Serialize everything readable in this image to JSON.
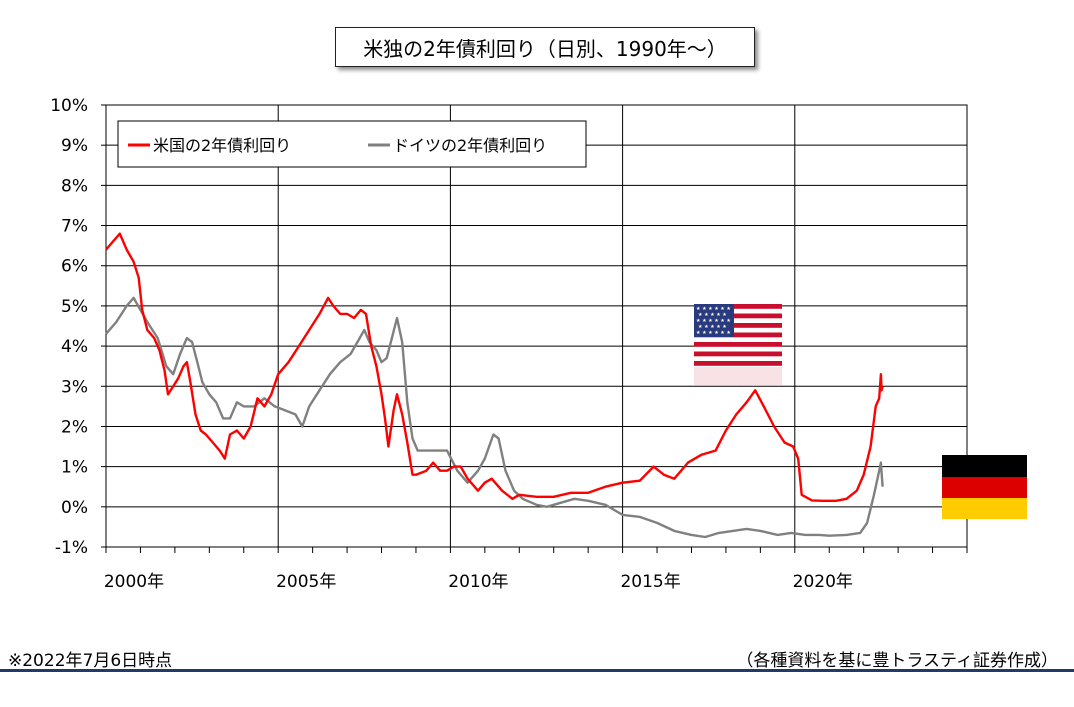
{
  "header": {
    "title": "米独の2年債利回り（日別、1990年～）"
  },
  "footer": {
    "note_left": "※2022年7月6日時点",
    "note_right": "（各種資料を基に豊トラスティ証券作成）"
  },
  "flags": [
    {
      "name": "us-flag-icon"
    },
    {
      "name": "german-flag-icon"
    }
  ],
  "chart_data": {
    "type": "line",
    "title": "米独の2年債利回り（日別、1990年～）",
    "xlabel": "",
    "ylabel": "",
    "xlim": [
      2000,
      2025
    ],
    "ylim": [
      -1,
      10
    ],
    "x_ticks": [
      {
        "value": 2000,
        "label": "2000年"
      },
      {
        "value": 2005,
        "label": "2005年"
      },
      {
        "value": 2010,
        "label": "2010年"
      },
      {
        "value": 2015,
        "label": "2015年"
      },
      {
        "value": 2020,
        "label": "2020年"
      }
    ],
    "y_ticks": [
      {
        "value": 10,
        "label": "10%"
      },
      {
        "value": 9,
        "label": "9%"
      },
      {
        "value": 8,
        "label": "8%"
      },
      {
        "value": 7,
        "label": "7%"
      },
      {
        "value": 6,
        "label": "6%"
      },
      {
        "value": 5,
        "label": "5%"
      },
      {
        "value": 4,
        "label": "4%"
      },
      {
        "value": 3,
        "label": "3%"
      },
      {
        "value": 2,
        "label": "2%"
      },
      {
        "value": 1,
        "label": "1%"
      },
      {
        "value": 0,
        "label": "0%"
      },
      {
        "value": -1,
        "label": "-1%",
        "color": "#ff0000"
      }
    ],
    "grid": true,
    "legend_position": "top-left",
    "series": [
      {
        "name": "米国の2年債利回り",
        "color": "#ff0000",
        "points": [
          [
            2000.0,
            6.4
          ],
          [
            2000.2,
            6.6
          ],
          [
            2000.4,
            6.8
          ],
          [
            2000.6,
            6.4
          ],
          [
            2000.8,
            6.1
          ],
          [
            2000.95,
            5.7
          ],
          [
            2001.05,
            4.9
          ],
          [
            2001.2,
            4.4
          ],
          [
            2001.4,
            4.2
          ],
          [
            2001.55,
            3.9
          ],
          [
            2001.7,
            3.4
          ],
          [
            2001.8,
            2.8
          ],
          [
            2001.95,
            3.0
          ],
          [
            2002.1,
            3.2
          ],
          [
            2002.25,
            3.5
          ],
          [
            2002.35,
            3.6
          ],
          [
            2002.45,
            3.1
          ],
          [
            2002.6,
            2.3
          ],
          [
            2002.75,
            1.9
          ],
          [
            2002.9,
            1.8
          ],
          [
            2003.1,
            1.6
          ],
          [
            2003.3,
            1.4
          ],
          [
            2003.45,
            1.2
          ],
          [
            2003.6,
            1.8
          ],
          [
            2003.8,
            1.9
          ],
          [
            2004.0,
            1.7
          ],
          [
            2004.2,
            2.0
          ],
          [
            2004.4,
            2.7
          ],
          [
            2004.6,
            2.5
          ],
          [
            2004.8,
            2.8
          ],
          [
            2005.0,
            3.3
          ],
          [
            2005.3,
            3.6
          ],
          [
            2005.6,
            4.0
          ],
          [
            2005.9,
            4.4
          ],
          [
            2006.2,
            4.8
          ],
          [
            2006.45,
            5.2
          ],
          [
            2006.6,
            5.0
          ],
          [
            2006.8,
            4.8
          ],
          [
            2007.0,
            4.8
          ],
          [
            2007.2,
            4.7
          ],
          [
            2007.4,
            4.9
          ],
          [
            2007.55,
            4.8
          ],
          [
            2007.7,
            4.0
          ],
          [
            2007.85,
            3.5
          ],
          [
            2008.0,
            2.8
          ],
          [
            2008.1,
            2.2
          ],
          [
            2008.2,
            1.5
          ],
          [
            2008.35,
            2.4
          ],
          [
            2008.45,
            2.8
          ],
          [
            2008.6,
            2.3
          ],
          [
            2008.75,
            1.6
          ],
          [
            2008.9,
            0.8
          ],
          [
            2009.0,
            0.8
          ],
          [
            2009.3,
            0.9
          ],
          [
            2009.5,
            1.1
          ],
          [
            2009.7,
            0.9
          ],
          [
            2009.9,
            0.9
          ],
          [
            2010.1,
            1.0
          ],
          [
            2010.3,
            1.0
          ],
          [
            2010.5,
            0.7
          ],
          [
            2010.8,
            0.4
          ],
          [
            2011.0,
            0.6
          ],
          [
            2011.2,
            0.7
          ],
          [
            2011.5,
            0.4
          ],
          [
            2011.8,
            0.2
          ],
          [
            2012.0,
            0.3
          ],
          [
            2012.5,
            0.25
          ],
          [
            2013.0,
            0.25
          ],
          [
            2013.5,
            0.35
          ],
          [
            2014.0,
            0.35
          ],
          [
            2014.5,
            0.5
          ],
          [
            2015.0,
            0.6
          ],
          [
            2015.5,
            0.65
          ],
          [
            2015.9,
            1.0
          ],
          [
            2016.2,
            0.8
          ],
          [
            2016.5,
            0.7
          ],
          [
            2016.9,
            1.1
          ],
          [
            2017.3,
            1.3
          ],
          [
            2017.7,
            1.4
          ],
          [
            2018.0,
            1.9
          ],
          [
            2018.3,
            2.3
          ],
          [
            2018.6,
            2.6
          ],
          [
            2018.85,
            2.9
          ],
          [
            2019.1,
            2.5
          ],
          [
            2019.4,
            2.0
          ],
          [
            2019.7,
            1.6
          ],
          [
            2019.95,
            1.5
          ],
          [
            2020.1,
            1.2
          ],
          [
            2020.2,
            0.3
          ],
          [
            2020.5,
            0.16
          ],
          [
            2020.8,
            0.15
          ],
          [
            2021.2,
            0.15
          ],
          [
            2021.5,
            0.2
          ],
          [
            2021.8,
            0.4
          ],
          [
            2022.0,
            0.8
          ],
          [
            2022.2,
            1.5
          ],
          [
            2022.35,
            2.5
          ],
          [
            2022.45,
            2.7
          ],
          [
            2022.5,
            3.3
          ],
          [
            2022.52,
            2.9
          ],
          [
            2022.55,
            3.0
          ]
        ]
      },
      {
        "name": "ドイツの2年債利回り",
        "color": "#808080",
        "points": [
          [
            2000.0,
            4.3
          ],
          [
            2000.3,
            4.6
          ],
          [
            2000.6,
            5.0
          ],
          [
            2000.8,
            5.2
          ],
          [
            2001.0,
            4.9
          ],
          [
            2001.2,
            4.6
          ],
          [
            2001.5,
            4.2
          ],
          [
            2001.75,
            3.5
          ],
          [
            2001.95,
            3.3
          ],
          [
            2002.15,
            3.8
          ],
          [
            2002.35,
            4.2
          ],
          [
            2002.5,
            4.1
          ],
          [
            2002.65,
            3.6
          ],
          [
            2002.8,
            3.1
          ],
          [
            2003.0,
            2.8
          ],
          [
            2003.2,
            2.6
          ],
          [
            2003.4,
            2.2
          ],
          [
            2003.6,
            2.2
          ],
          [
            2003.8,
            2.6
          ],
          [
            2004.0,
            2.5
          ],
          [
            2004.3,
            2.5
          ],
          [
            2004.6,
            2.7
          ],
          [
            2004.9,
            2.5
          ],
          [
            2005.2,
            2.4
          ],
          [
            2005.5,
            2.3
          ],
          [
            2005.7,
            2.0
          ],
          [
            2005.9,
            2.5
          ],
          [
            2006.2,
            2.9
          ],
          [
            2006.5,
            3.3
          ],
          [
            2006.8,
            3.6
          ],
          [
            2007.1,
            3.8
          ],
          [
            2007.3,
            4.1
          ],
          [
            2007.5,
            4.4
          ],
          [
            2007.65,
            4.1
          ],
          [
            2007.85,
            3.9
          ],
          [
            2008.0,
            3.6
          ],
          [
            2008.15,
            3.7
          ],
          [
            2008.3,
            4.2
          ],
          [
            2008.45,
            4.7
          ],
          [
            2008.6,
            4.1
          ],
          [
            2008.75,
            2.6
          ],
          [
            2008.9,
            1.7
          ],
          [
            2009.05,
            1.4
          ],
          [
            2009.3,
            1.4
          ],
          [
            2009.6,
            1.4
          ],
          [
            2009.9,
            1.4
          ],
          [
            2010.2,
            0.9
          ],
          [
            2010.5,
            0.6
          ],
          [
            2010.8,
            0.9
          ],
          [
            2011.0,
            1.2
          ],
          [
            2011.25,
            1.8
          ],
          [
            2011.4,
            1.7
          ],
          [
            2011.6,
            0.9
          ],
          [
            2011.85,
            0.4
          ],
          [
            2012.1,
            0.2
          ],
          [
            2012.5,
            0.05
          ],
          [
            2012.8,
            0.0
          ],
          [
            2013.2,
            0.1
          ],
          [
            2013.6,
            0.2
          ],
          [
            2014.0,
            0.15
          ],
          [
            2014.5,
            0.05
          ],
          [
            2015.0,
            -0.2
          ],
          [
            2015.5,
            -0.25
          ],
          [
            2016.0,
            -0.4
          ],
          [
            2016.5,
            -0.6
          ],
          [
            2017.0,
            -0.7
          ],
          [
            2017.4,
            -0.75
          ],
          [
            2017.8,
            -0.65
          ],
          [
            2018.2,
            -0.6
          ],
          [
            2018.6,
            -0.55
          ],
          [
            2019.0,
            -0.6
          ],
          [
            2019.5,
            -0.7
          ],
          [
            2019.9,
            -0.65
          ],
          [
            2020.3,
            -0.7
          ],
          [
            2020.7,
            -0.7
          ],
          [
            2021.0,
            -0.72
          ],
          [
            2021.5,
            -0.7
          ],
          [
            2021.9,
            -0.65
          ],
          [
            2022.1,
            -0.4
          ],
          [
            2022.3,
            0.3
          ],
          [
            2022.45,
            0.9
          ],
          [
            2022.5,
            1.1
          ],
          [
            2022.55,
            0.5
          ]
        ]
      }
    ]
  }
}
